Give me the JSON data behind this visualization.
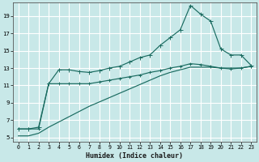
{
  "xlabel": "Humidex (Indice chaleur)",
  "bg_color": "#c8e8e8",
  "grid_color": "#ffffff",
  "line_color": "#1a6b60",
  "xlim": [
    -0.5,
    23.5
  ],
  "ylim": [
    4.5,
    20.5
  ],
  "yticks": [
    5,
    7,
    9,
    11,
    13,
    15,
    17,
    19
  ],
  "xticks": [
    0,
    1,
    2,
    3,
    4,
    5,
    6,
    7,
    8,
    9,
    10,
    11,
    12,
    13,
    14,
    15,
    16,
    17,
    18,
    19,
    20,
    21,
    22,
    23
  ],
  "line1_x": [
    0,
    1,
    2,
    3,
    4,
    5,
    6,
    7,
    8,
    9,
    10,
    11,
    12,
    13,
    14,
    15,
    16,
    17,
    18,
    19,
    20,
    21,
    22,
    23
  ],
  "line1_y": [
    6.0,
    6.0,
    6.2,
    11.2,
    12.8,
    12.8,
    12.6,
    12.5,
    12.7,
    13.0,
    13.2,
    13.7,
    14.2,
    14.5,
    15.6,
    16.5,
    17.4,
    20.2,
    19.2,
    18.4,
    15.2,
    14.5,
    14.5,
    13.3
  ],
  "line2_x": [
    0,
    1,
    2,
    3,
    4,
    5,
    6,
    7,
    8,
    9,
    10,
    11,
    12,
    13,
    14,
    15,
    16,
    17,
    18,
    19,
    20,
    21,
    22,
    23
  ],
  "line2_y": [
    6.0,
    6.0,
    6.0,
    11.2,
    11.2,
    11.2,
    11.2,
    11.2,
    11.4,
    11.6,
    11.8,
    12.0,
    12.2,
    12.5,
    12.7,
    13.0,
    13.2,
    13.5,
    13.4,
    13.2,
    13.0,
    12.9,
    13.0,
    13.2
  ],
  "line3_x": [
    0,
    1,
    2,
    3,
    4,
    5,
    6,
    7,
    8,
    9,
    10,
    11,
    12,
    13,
    14,
    15,
    16,
    17,
    18,
    19,
    20,
    21,
    22,
    23
  ],
  "line3_y": [
    5.2,
    5.2,
    5.5,
    6.2,
    6.8,
    7.4,
    8.0,
    8.6,
    9.1,
    9.6,
    10.1,
    10.6,
    11.1,
    11.6,
    12.1,
    12.5,
    12.8,
    13.1,
    13.1,
    13.1,
    13.0,
    13.0,
    13.0,
    13.2
  ]
}
